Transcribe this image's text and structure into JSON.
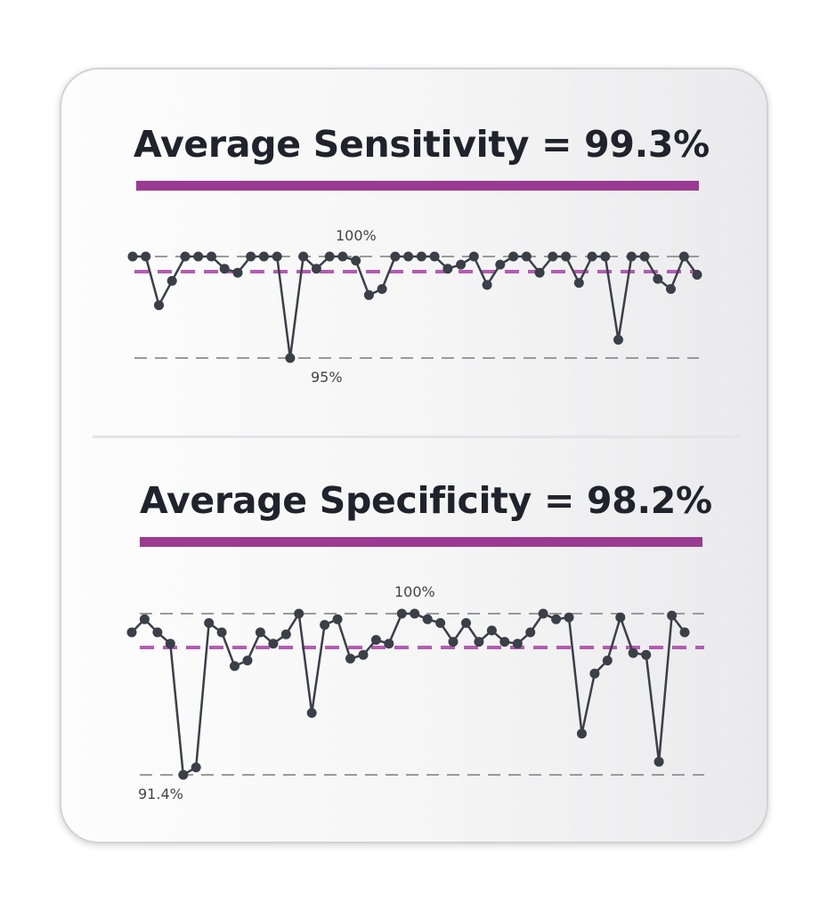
{
  "colors": {
    "accent": "#9b3a92",
    "series": "#3a3f48",
    "reference": "#9a9a9a",
    "average_line": "#b25cb0",
    "title": "#20232b"
  },
  "charts": [
    {
      "title": "Average Sensitivity = 99.3%",
      "top_label": "100%",
      "bottom_label": "95%"
    },
    {
      "title": "Average Specificity = 98.2%",
      "top_label": "100%",
      "bottom_label": "91.4%"
    }
  ],
  "chart_data": [
    {
      "type": "line",
      "title": "Average Sensitivity = 99.3%",
      "xlabel": "",
      "ylabel": "",
      "ylim": [
        95,
        100
      ],
      "grid": false,
      "reference_lines": [
        {
          "value": 100,
          "label": "100%",
          "style": "dashed-gray"
        },
        {
          "value": 95,
          "label": "95%",
          "style": "dashed-gray"
        },
        {
          "value": 99.3,
          "label": "",
          "style": "dashed-purple"
        }
      ],
      "values": [
        100,
        100,
        97.6,
        98.8,
        100,
        100,
        100,
        99.4,
        99.2,
        100,
        100,
        100,
        95.0,
        100,
        99.4,
        100,
        100,
        99.8,
        98.1,
        98.4,
        100,
        100,
        100,
        100,
        99.4,
        99.6,
        100,
        98.6,
        99.6,
        100,
        100,
        99.2,
        100,
        100,
        98.7,
        100,
        100,
        95.9,
        100,
        100,
        98.9,
        98.4,
        100,
        99.1
      ]
    },
    {
      "type": "line",
      "title": "Average Specificity = 98.2%",
      "xlabel": "",
      "ylabel": "",
      "ylim": [
        91.4,
        100
      ],
      "grid": false,
      "reference_lines": [
        {
          "value": 100,
          "label": "100%",
          "style": "dashed-gray"
        },
        {
          "value": 91.4,
          "label": "91.4%",
          "style": "dashed-gray"
        },
        {
          "value": 98.2,
          "label": "",
          "style": "dashed-purple"
        }
      ],
      "values": [
        99.0,
        99.7,
        99.0,
        98.4,
        91.4,
        91.8,
        99.5,
        99.0,
        97.2,
        97.5,
        99.0,
        98.4,
        98.9,
        100,
        94.7,
        99.4,
        99.7,
        97.6,
        97.8,
        98.6,
        98.4,
        100,
        100,
        99.7,
        99.5,
        98.5,
        99.5,
        98.5,
        99.1,
        98.5,
        98.4,
        99.0,
        100,
        99.7,
        99.8,
        93.6,
        96.8,
        97.5,
        99.8,
        97.9,
        97.8,
        92.1,
        99.9,
        99.0
      ]
    }
  ]
}
